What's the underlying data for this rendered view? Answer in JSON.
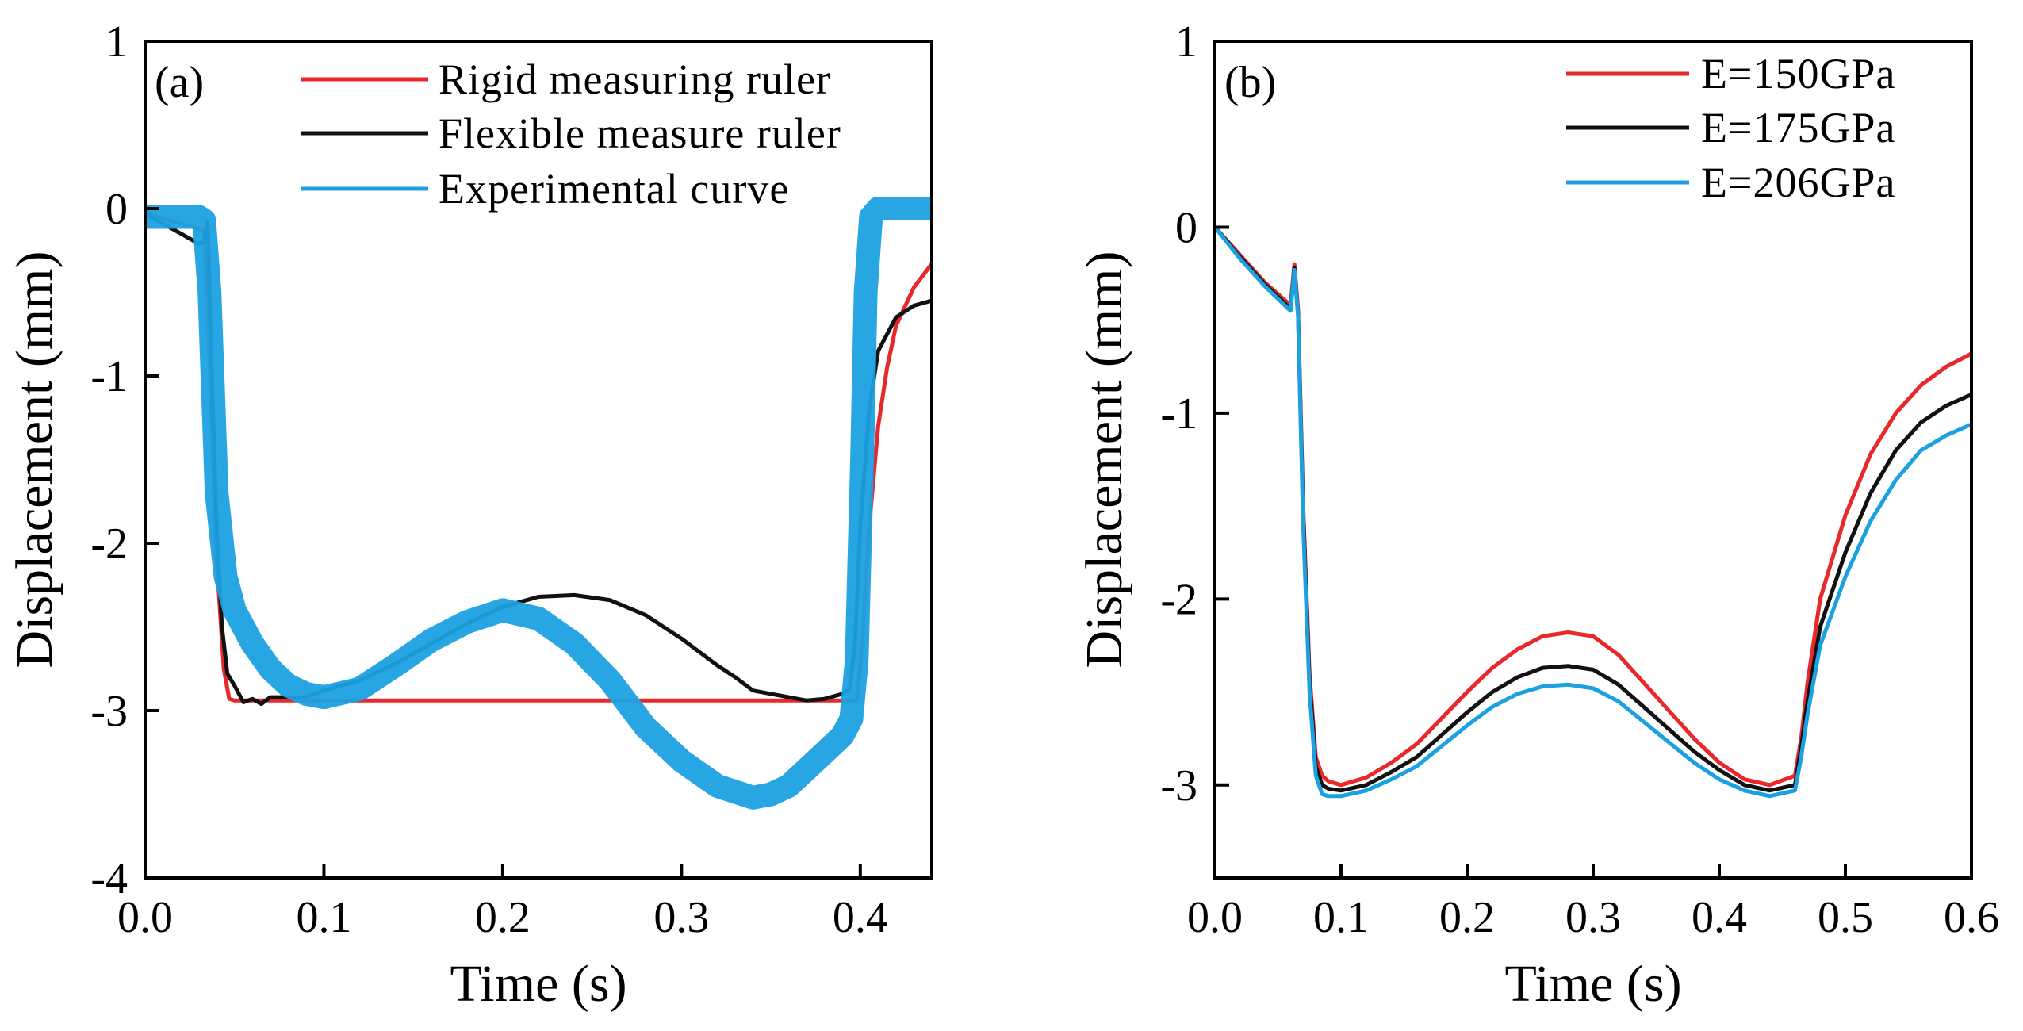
{
  "chart_data": [
    {
      "id": "a",
      "type": "line",
      "panel_label": "(a)",
      "xlabel": "Time  (s)",
      "ylabel": "Displacement  (mm)",
      "xlim": [
        0,
        0.44
      ],
      "ylim": [
        -4,
        1
      ],
      "xticks": [
        0,
        0.1,
        0.2,
        0.3,
        0.4
      ],
      "xtick_labels": [
        "0.0",
        "0.1",
        "0.2",
        "0.3",
        "0.4"
      ],
      "yticks": [
        1,
        0,
        -1,
        -2,
        -3,
        -4
      ],
      "ytick_labels": [
        "1",
        "0",
        "-1",
        "-2",
        "-3",
        "-4"
      ],
      "legend_position": "top-right",
      "series": [
        {
          "name": "Rigid measuring ruler",
          "color": "#e8282b",
          "x": [
            0,
            0.01,
            0.02,
            0.03,
            0.033,
            0.036,
            0.04,
            0.044,
            0.047,
            0.05,
            0.1,
            0.2,
            0.3,
            0.39,
            0.398,
            0.401,
            0.405,
            0.41,
            0.415,
            0.42,
            0.43,
            0.44
          ],
          "y": [
            -0.02,
            -0.06,
            -0.09,
            -0.12,
            -0.13,
            -0.9,
            -2.1,
            -2.75,
            -2.93,
            -2.94,
            -2.94,
            -2.94,
            -2.94,
            -2.94,
            -2.94,
            -2.6,
            -1.9,
            -1.3,
            -0.95,
            -0.7,
            -0.47,
            -0.33
          ]
        },
        {
          "name": "Flexible measure ruler",
          "color": "#111111",
          "x": [
            0,
            0.01,
            0.02,
            0.03,
            0.033,
            0.035,
            0.037,
            0.04,
            0.043,
            0.046,
            0.05,
            0.055,
            0.06,
            0.065,
            0.07,
            0.08,
            0.09,
            0.1,
            0.12,
            0.14,
            0.16,
            0.18,
            0.2,
            0.22,
            0.24,
            0.26,
            0.28,
            0.3,
            0.32,
            0.33,
            0.34,
            0.35,
            0.36,
            0.37,
            0.38,
            0.39,
            0.394,
            0.397,
            0.4,
            0.405,
            0.41,
            0.42,
            0.43,
            0.44
          ],
          "y": [
            -0.03,
            -0.09,
            -0.15,
            -0.21,
            -0.2,
            -0.08,
            -0.9,
            -1.9,
            -2.5,
            -2.78,
            -2.85,
            -2.95,
            -2.93,
            -2.96,
            -2.92,
            -2.92,
            -2.92,
            -2.88,
            -2.82,
            -2.72,
            -2.6,
            -2.48,
            -2.38,
            -2.32,
            -2.31,
            -2.34,
            -2.43,
            -2.57,
            -2.73,
            -2.8,
            -2.88,
            -2.9,
            -2.92,
            -2.94,
            -2.93,
            -2.9,
            -2.87,
            -2.6,
            -1.9,
            -1.2,
            -0.85,
            -0.65,
            -0.58,
            -0.55
          ]
        },
        {
          "name": "Experimental curve",
          "color": "#1ba1e2",
          "x": [
            0,
            0.01,
            0.02,
            0.03,
            0.033,
            0.036,
            0.04,
            0.045,
            0.05,
            0.06,
            0.07,
            0.08,
            0.09,
            0.1,
            0.12,
            0.14,
            0.16,
            0.18,
            0.2,
            0.22,
            0.24,
            0.26,
            0.28,
            0.3,
            0.32,
            0.34,
            0.35,
            0.36,
            0.37,
            0.38,
            0.39,
            0.395,
            0.398,
            0.401,
            0.403,
            0.406,
            0.41,
            0.42,
            0.43,
            0.44
          ],
          "y": [
            -0.05,
            -0.05,
            -0.05,
            -0.05,
            -0.07,
            -0.5,
            -1.7,
            -2.2,
            -2.4,
            -2.6,
            -2.75,
            -2.85,
            -2.9,
            -2.92,
            -2.87,
            -2.73,
            -2.58,
            -2.47,
            -2.4,
            -2.45,
            -2.6,
            -2.82,
            -3.1,
            -3.3,
            -3.45,
            -3.52,
            -3.5,
            -3.45,
            -3.35,
            -3.25,
            -3.15,
            -3.05,
            -2.7,
            -1.5,
            -0.5,
            -0.05,
            0.0,
            0.0,
            0.0,
            0.0
          ]
        }
      ]
    },
    {
      "id": "b",
      "type": "line",
      "panel_label": "(b)",
      "xlabel": "Time  (s)",
      "ylabel": "Displacement  (mm)",
      "xlim": [
        0,
        0.6
      ],
      "ylim": [
        -3.5,
        1
      ],
      "xticks": [
        0,
        0.1,
        0.2,
        0.3,
        0.4,
        0.5,
        0.6
      ],
      "xtick_labels": [
        "0.0",
        "0.1",
        "0.2",
        "0.3",
        "0.4",
        "0.5",
        "0.6"
      ],
      "yticks": [
        1,
        0,
        -1,
        -2,
        -3
      ],
      "ytick_labels": [
        "1",
        "0",
        "-1",
        "-2",
        "-3"
      ],
      "legend_position": "top-right",
      "series": [
        {
          "name": "E=150GPa",
          "color": "#e8282b",
          "x": [
            0,
            0.02,
            0.04,
            0.06,
            0.063,
            0.066,
            0.07,
            0.075,
            0.08,
            0.085,
            0.09,
            0.1,
            0.12,
            0.14,
            0.16,
            0.18,
            0.2,
            0.22,
            0.24,
            0.26,
            0.28,
            0.3,
            0.32,
            0.34,
            0.36,
            0.38,
            0.4,
            0.42,
            0.44,
            0.46,
            0.465,
            0.47,
            0.48,
            0.5,
            0.52,
            0.54,
            0.56,
            0.58,
            0.6
          ],
          "y": [
            0,
            -0.15,
            -0.3,
            -0.42,
            -0.2,
            -0.45,
            -1.5,
            -2.4,
            -2.85,
            -2.95,
            -2.98,
            -3.0,
            -2.96,
            -2.88,
            -2.78,
            -2.64,
            -2.5,
            -2.37,
            -2.27,
            -2.2,
            -2.18,
            -2.2,
            -2.3,
            -2.45,
            -2.6,
            -2.75,
            -2.88,
            -2.97,
            -3.0,
            -2.95,
            -2.75,
            -2.45,
            -2.0,
            -1.55,
            -1.22,
            -1.0,
            -0.85,
            -0.75,
            -0.68
          ]
        },
        {
          "name": "E=175GPa",
          "color": "#111111",
          "x": [
            0,
            0.02,
            0.04,
            0.06,
            0.063,
            0.066,
            0.07,
            0.075,
            0.08,
            0.085,
            0.09,
            0.1,
            0.12,
            0.14,
            0.16,
            0.18,
            0.2,
            0.22,
            0.24,
            0.26,
            0.28,
            0.3,
            0.32,
            0.34,
            0.36,
            0.38,
            0.4,
            0.42,
            0.44,
            0.46,
            0.465,
            0.47,
            0.48,
            0.5,
            0.52,
            0.54,
            0.56,
            0.58,
            0.6
          ],
          "y": [
            0,
            -0.16,
            -0.31,
            -0.44,
            -0.22,
            -0.47,
            -1.55,
            -2.45,
            -2.9,
            -3.0,
            -3.02,
            -3.03,
            -3.0,
            -2.93,
            -2.85,
            -2.73,
            -2.61,
            -2.5,
            -2.42,
            -2.37,
            -2.36,
            -2.38,
            -2.46,
            -2.58,
            -2.7,
            -2.82,
            -2.92,
            -3.0,
            -3.03,
            -3.0,
            -2.8,
            -2.55,
            -2.15,
            -1.75,
            -1.43,
            -1.2,
            -1.05,
            -0.96,
            -0.9
          ]
        },
        {
          "name": "E=206GPa",
          "color": "#1ba1e2",
          "x": [
            0,
            0.02,
            0.04,
            0.06,
            0.063,
            0.066,
            0.07,
            0.075,
            0.08,
            0.085,
            0.09,
            0.1,
            0.12,
            0.14,
            0.16,
            0.18,
            0.2,
            0.22,
            0.24,
            0.26,
            0.28,
            0.3,
            0.32,
            0.34,
            0.36,
            0.38,
            0.4,
            0.42,
            0.44,
            0.46,
            0.465,
            0.47,
            0.48,
            0.5,
            0.52,
            0.54,
            0.56,
            0.58,
            0.6
          ],
          "y": [
            0,
            -0.17,
            -0.32,
            -0.45,
            -0.23,
            -0.48,
            -1.6,
            -2.5,
            -2.95,
            -3.05,
            -3.06,
            -3.06,
            -3.03,
            -2.97,
            -2.9,
            -2.79,
            -2.68,
            -2.58,
            -2.51,
            -2.47,
            -2.46,
            -2.48,
            -2.55,
            -2.66,
            -2.77,
            -2.88,
            -2.97,
            -3.03,
            -3.06,
            -3.03,
            -2.85,
            -2.62,
            -2.25,
            -1.88,
            -1.58,
            -1.36,
            -1.2,
            -1.12,
            -1.06
          ]
        }
      ]
    }
  ]
}
